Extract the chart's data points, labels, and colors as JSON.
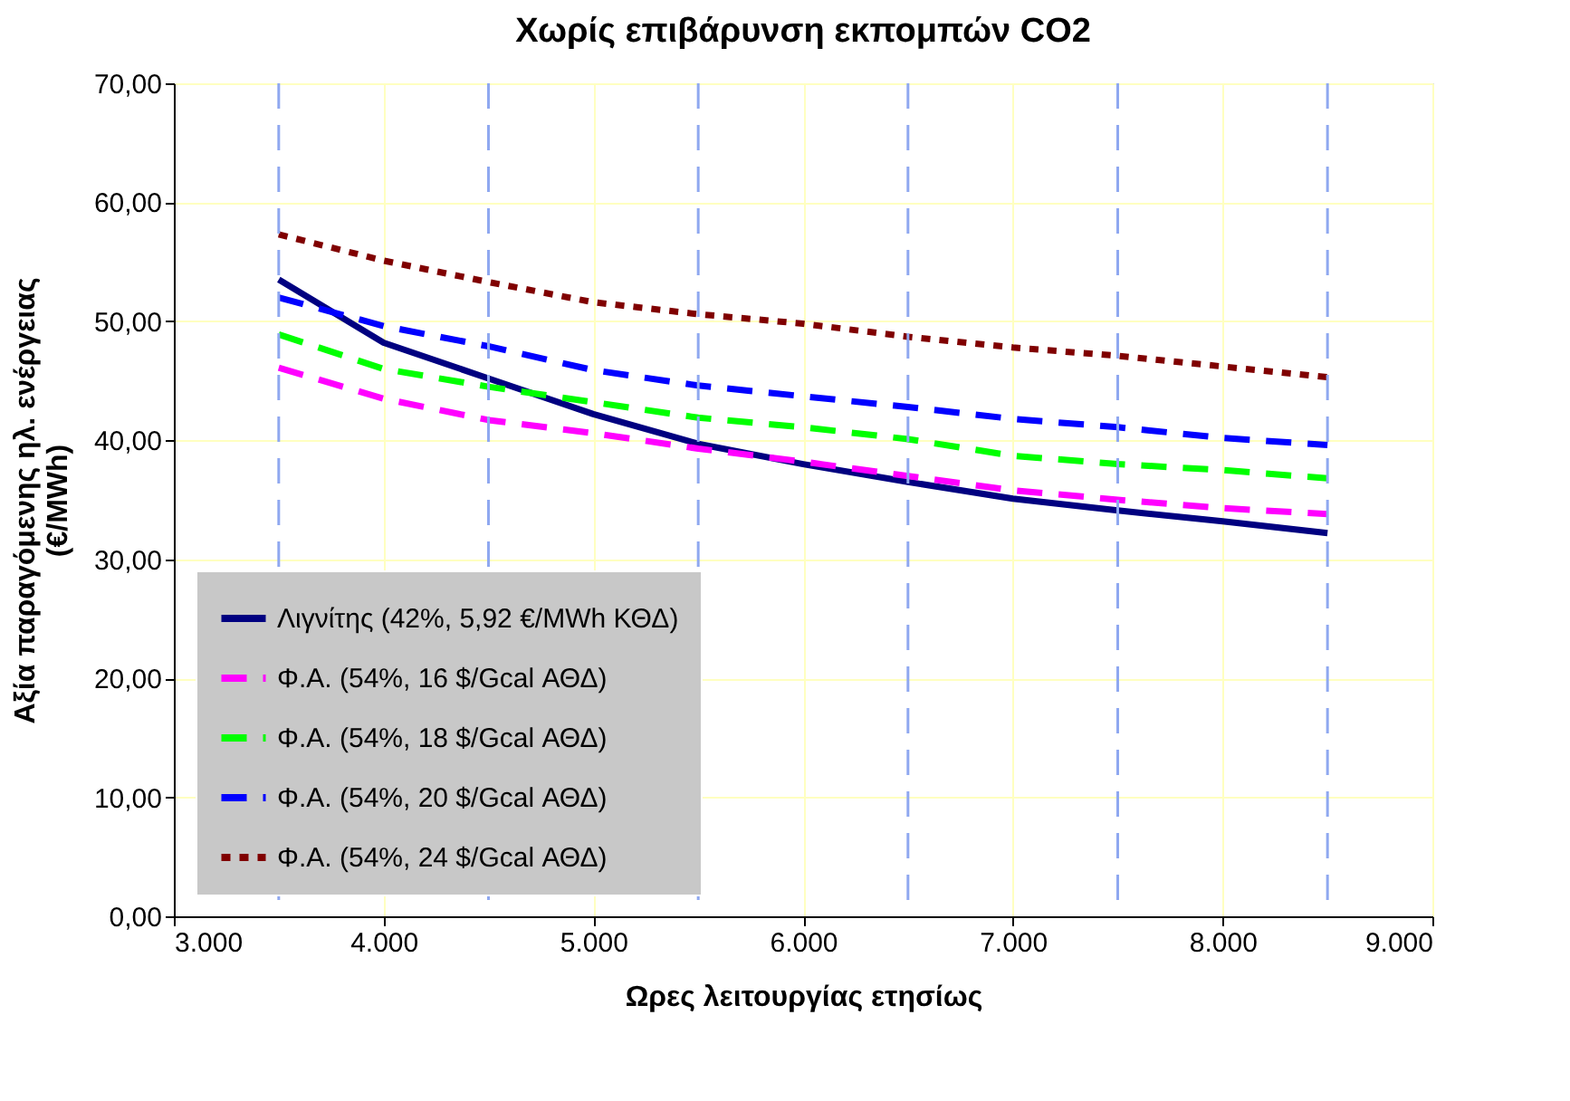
{
  "chart_data": {
    "type": "line",
    "title": "Χωρίς επιβάρυνση εκπομπών CO2",
    "xlabel": "Ωρες λειτουργίας ετησίως",
    "ylabel": "Αξία παραγόμενης ηλ. ενέργειας\n(€/MWh)",
    "x": [
      3500,
      4000,
      4500,
      5000,
      5500,
      6000,
      6500,
      7000,
      7500,
      8000,
      8500
    ],
    "series": [
      {
        "name": "Λιγνίτης (42%, 5,92 €/MWh ΚΘΔ)",
        "color": "#000080",
        "line_style": "solid",
        "values": [
          53.5,
          48.2,
          45.2,
          42.2,
          39.7,
          38.0,
          36.5,
          35.1,
          34.1,
          33.2,
          32.2
        ]
      },
      {
        "name": "Φ.Α. (54%, 16 $/Gcal ΑΘΔ)",
        "color": "#ff00ff",
        "line_style": "dashed",
        "values": [
          46.1,
          43.5,
          41.7,
          40.6,
          39.3,
          38.2,
          37.0,
          35.8,
          35.0,
          34.3,
          33.8
        ]
      },
      {
        "name": "Φ.Α. (54%, 18 $/Gcal ΑΘΔ)",
        "color": "#00ff00",
        "line_style": "dashed",
        "values": [
          48.9,
          46.0,
          44.5,
          43.2,
          41.9,
          41.1,
          40.1,
          38.7,
          38.0,
          37.5,
          36.8
        ]
      },
      {
        "name": "Φ.Α. (54%, 20 $/Gcal ΑΘΔ)",
        "color": "#0000ff",
        "line_style": "dashed",
        "values": [
          52.0,
          49.6,
          47.9,
          45.9,
          44.6,
          43.7,
          42.8,
          41.8,
          41.1,
          40.2,
          39.6
        ]
      },
      {
        "name": "Φ.Α. (54%, 24 $/Gcal ΑΘΔ)",
        "color": "#800000",
        "line_style": "dotted",
        "values": [
          57.3,
          55.1,
          53.3,
          51.6,
          50.6,
          49.8,
          48.7,
          47.8,
          47.1,
          46.2,
          45.3
        ]
      }
    ],
    "xlim": [
      3000,
      9000
    ],
    "xticks": [
      {
        "value": 3000,
        "label": "3.000"
      },
      {
        "value": 4000,
        "label": "4.000"
      },
      {
        "value": 5000,
        "label": "5.000"
      },
      {
        "value": 6000,
        "label": "6.000"
      },
      {
        "value": 7000,
        "label": "7.000"
      },
      {
        "value": 8000,
        "label": "8.000"
      },
      {
        "value": 9000,
        "label": "9.000"
      }
    ],
    "ylim": [
      0,
      70
    ],
    "yticks": [
      {
        "value": 0,
        "label": "0,00"
      },
      {
        "value": 10,
        "label": "10,00"
      },
      {
        "value": 20,
        "label": "20,00"
      },
      {
        "value": 30,
        "label": "30,00"
      },
      {
        "value": 40,
        "label": "40,00"
      },
      {
        "value": 50,
        "label": "50,00"
      },
      {
        "value": 60,
        "label": "60,00"
      },
      {
        "value": 70,
        "label": "70,00"
      }
    ],
    "ref_lines": [
      {
        "axis": "x",
        "value": 3500,
        "color": "#8fa8f0",
        "line_style": "dashed"
      },
      {
        "axis": "x",
        "value": 4500,
        "color": "#8fa8f0",
        "line_style": "dashed"
      },
      {
        "axis": "x",
        "value": 5500,
        "color": "#8fa8f0",
        "line_style": "dashed"
      },
      {
        "axis": "x",
        "value": 6500,
        "color": "#8fa8f0",
        "line_style": "dashed"
      },
      {
        "axis": "x",
        "value": 7500,
        "color": "#8fa8f0",
        "line_style": "dashed"
      },
      {
        "axis": "x",
        "value": 8500,
        "color": "#8fa8f0",
        "line_style": "dashed"
      }
    ],
    "grid": true,
    "legend": "bottom left",
    "marker": "none"
  }
}
